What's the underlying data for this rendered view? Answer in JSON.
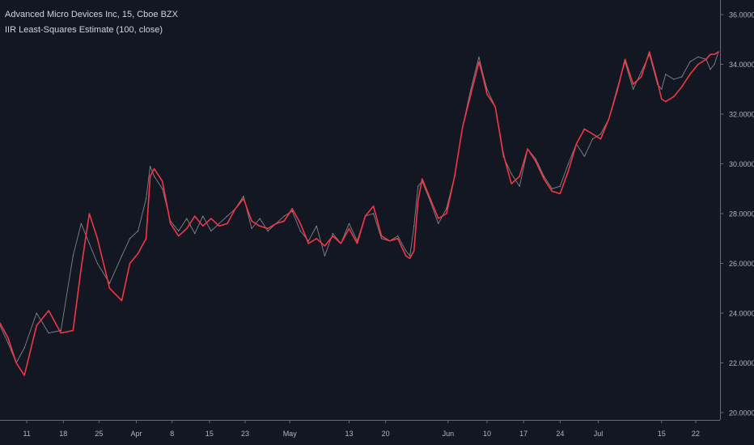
{
  "legend": {
    "symbol_line": "Advanced Micro Devices Inc, 15, Cboe BZX",
    "indicator_line": "IIR Least-Squares Estimate (100, close)"
  },
  "colors": {
    "background": "#131722",
    "price_line": "#9598a1",
    "indicator_line": "#f23645",
    "axis_text": "#b2b5be",
    "axis_border": "#6a6d78"
  },
  "chart_data": {
    "type": "line",
    "title": "Advanced Micro Devices Inc, 15, Cboe BZX",
    "subtitle": "IIR Least-Squares Estimate (100, close)",
    "xlabel": "",
    "ylabel": "",
    "ylim": [
      20.0,
      36.0
    ],
    "y_ticks": [
      "20.0000",
      "22.0000",
      "24.0000",
      "26.0000",
      "28.0000",
      "30.0000",
      "32.0000",
      "34.0000",
      "36.0000"
    ],
    "x_ticks": [
      "11",
      "18",
      "25",
      "Apr",
      "8",
      "15",
      "23",
      "May",
      "13",
      "20",
      "Jun",
      "10",
      "17",
      "24",
      "Jul",
      "15",
      "22"
    ],
    "grid": false,
    "legend_position": "top-left",
    "x_unit": "bar index (15-minute bars)",
    "series": [
      {
        "name": "close",
        "role": "price",
        "color": "#9598a1",
        "x": [
          0,
          10,
          20,
          30,
          45,
          60,
          75,
          90,
          100,
          110,
          120,
          135,
          150,
          160,
          170,
          180,
          185,
          190,
          200,
          210,
          220,
          230,
          240,
          250,
          260,
          270,
          280,
          290,
          300,
          310,
          320,
          330,
          340,
          350,
          360,
          370,
          380,
          390,
          400,
          410,
          420,
          430,
          440,
          450,
          460,
          470,
          480,
          490,
          500,
          505,
          510,
          515,
          520,
          530,
          540,
          550,
          560,
          570,
          580,
          590,
          595,
          600,
          610,
          620,
          630,
          640,
          650,
          660,
          670,
          680,
          690,
          700,
          710,
          720,
          730,
          740,
          750,
          760,
          770,
          780,
          790,
          800,
          810,
          815,
          820,
          830,
          840,
          850,
          860,
          870,
          875,
          880,
          885
        ],
        "values": [
          23.5,
          22.8,
          22.0,
          22.6,
          24.0,
          23.2,
          23.3,
          26.3,
          27.6,
          26.8,
          26.0,
          25.2,
          26.3,
          27.0,
          27.3,
          28.6,
          29.9,
          29.5,
          29.0,
          27.7,
          27.3,
          27.8,
          27.2,
          27.9,
          27.3,
          27.6,
          27.9,
          28.2,
          28.7,
          27.4,
          27.8,
          27.3,
          27.6,
          27.9,
          28.1,
          27.3,
          26.9,
          27.5,
          26.3,
          27.2,
          26.8,
          27.6,
          26.9,
          27.9,
          28.0,
          27.0,
          26.9,
          27.1,
          26.5,
          26.3,
          27.5,
          29.1,
          29.3,
          28.5,
          27.6,
          28.2,
          29.5,
          31.5,
          33.0,
          34.3,
          33.6,
          33.0,
          32.3,
          30.3,
          29.6,
          29.1,
          30.6,
          30.2,
          29.5,
          29.0,
          29.1,
          30.0,
          30.8,
          30.3,
          31.0,
          31.2,
          31.8,
          33.0,
          34.1,
          33.0,
          33.7,
          34.4,
          33.2,
          33.0,
          33.6,
          33.4,
          33.5,
          34.1,
          34.3,
          34.2,
          33.8,
          34.0,
          34.5
        ]
      },
      {
        "name": "IIR Least-Squares Estimate (100, close)",
        "role": "indicator",
        "color": "#f23645",
        "x": [
          0,
          10,
          20,
          30,
          45,
          60,
          75,
          90,
          100,
          110,
          120,
          135,
          150,
          160,
          170,
          180,
          185,
          190,
          200,
          210,
          220,
          230,
          240,
          250,
          260,
          270,
          280,
          290,
          300,
          310,
          320,
          330,
          340,
          350,
          360,
          370,
          380,
          390,
          400,
          410,
          420,
          430,
          440,
          450,
          460,
          470,
          480,
          490,
          500,
          505,
          510,
          515,
          520,
          530,
          540,
          550,
          560,
          570,
          580,
          590,
          595,
          600,
          610,
          620,
          630,
          640,
          650,
          660,
          670,
          680,
          690,
          700,
          710,
          720,
          730,
          740,
          750,
          760,
          770,
          780,
          790,
          800,
          810,
          815,
          820,
          830,
          840,
          850,
          860,
          870,
          875,
          880,
          885
        ],
        "values": [
          23.6,
          23.0,
          22.0,
          21.5,
          23.5,
          24.1,
          23.2,
          23.3,
          25.8,
          28.0,
          27.0,
          25.0,
          24.5,
          26.0,
          26.4,
          27.0,
          29.5,
          29.8,
          29.3,
          27.6,
          27.1,
          27.4,
          27.9,
          27.5,
          27.8,
          27.5,
          27.6,
          28.2,
          28.6,
          27.7,
          27.5,
          27.4,
          27.6,
          27.7,
          28.2,
          27.6,
          26.8,
          27.0,
          26.7,
          27.1,
          26.8,
          27.4,
          26.8,
          27.9,
          28.3,
          27.1,
          26.9,
          27.0,
          26.3,
          26.2,
          26.5,
          28.5,
          29.4,
          28.6,
          27.8,
          28.0,
          29.5,
          31.5,
          32.8,
          34.1,
          33.5,
          32.8,
          32.3,
          30.4,
          29.2,
          29.5,
          30.6,
          30.1,
          29.4,
          28.9,
          28.8,
          29.7,
          30.8,
          31.4,
          31.2,
          31.0,
          31.8,
          32.9,
          34.2,
          33.2,
          33.5,
          34.5,
          33.3,
          32.6,
          32.5,
          32.7,
          33.1,
          33.6,
          34.0,
          34.2,
          34.4,
          34.4,
          34.5
        ]
      }
    ]
  }
}
